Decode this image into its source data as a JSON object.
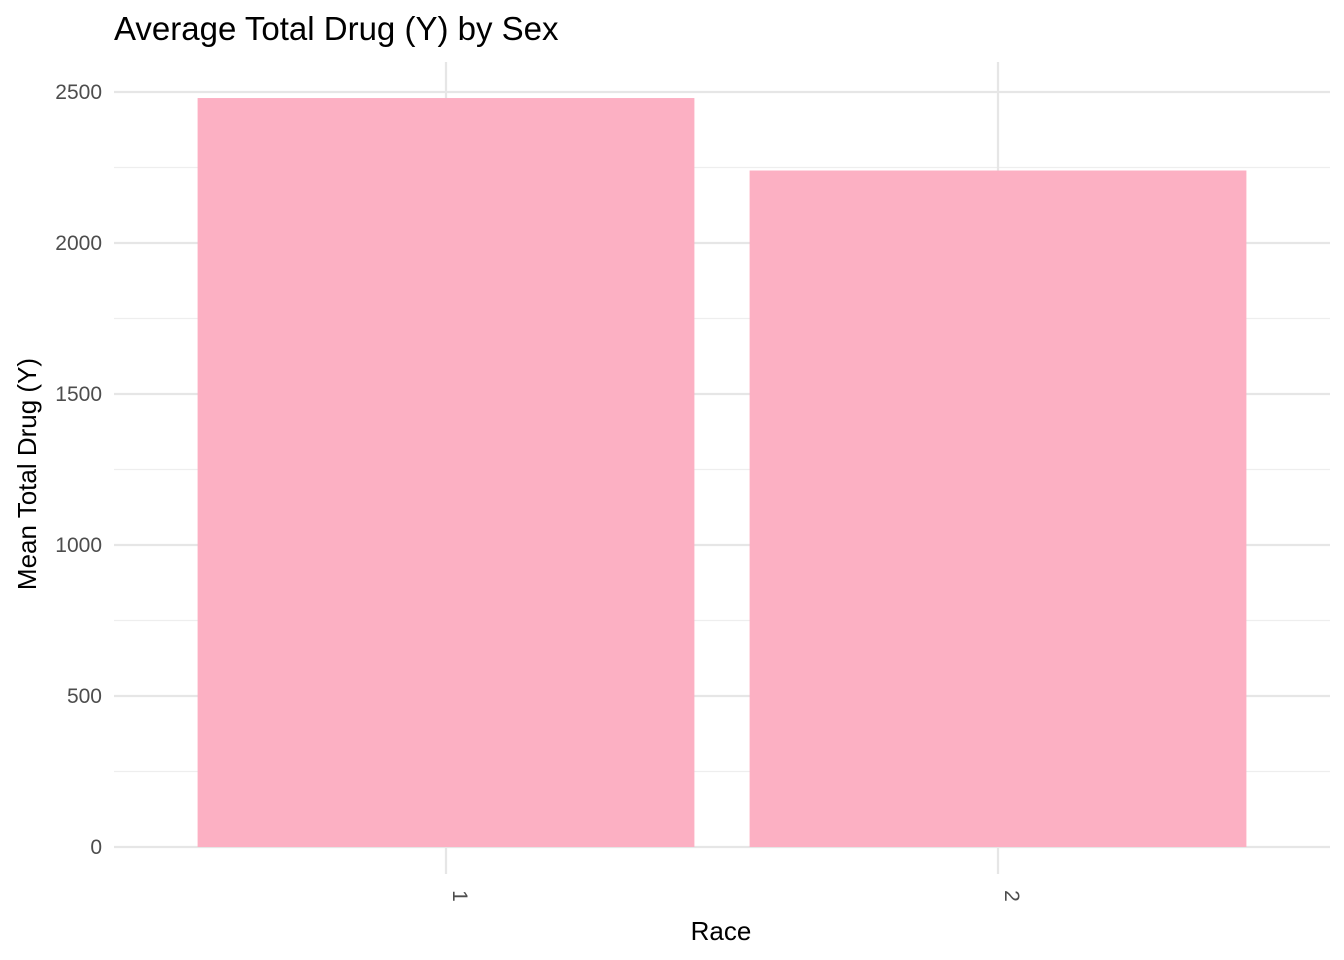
{
  "chart_data": {
    "type": "bar",
    "title": "Average Total Drug (Y) by Sex",
    "xlabel": "Race",
    "ylabel": "Mean Total Drug (Y)",
    "categories": [
      "1",
      "2"
    ],
    "values": [
      2480,
      2240
    ],
    "ylim": [
      0,
      2600
    ],
    "yticks": [
      0,
      500,
      1000,
      1500,
      2000,
      2500
    ],
    "ytick_labels": [
      "0",
      "500",
      "1000",
      "1500",
      "2000",
      "2500"
    ],
    "x_tick_label_rotation": "vertical",
    "grid": true,
    "legend": "none",
    "colors": {
      "bar": "#fcb0c3",
      "grid_major": "#e6e6e6",
      "grid_minor": "#eeeeee",
      "tick_text": "#4d4d4d",
      "text": "#000000"
    }
  }
}
